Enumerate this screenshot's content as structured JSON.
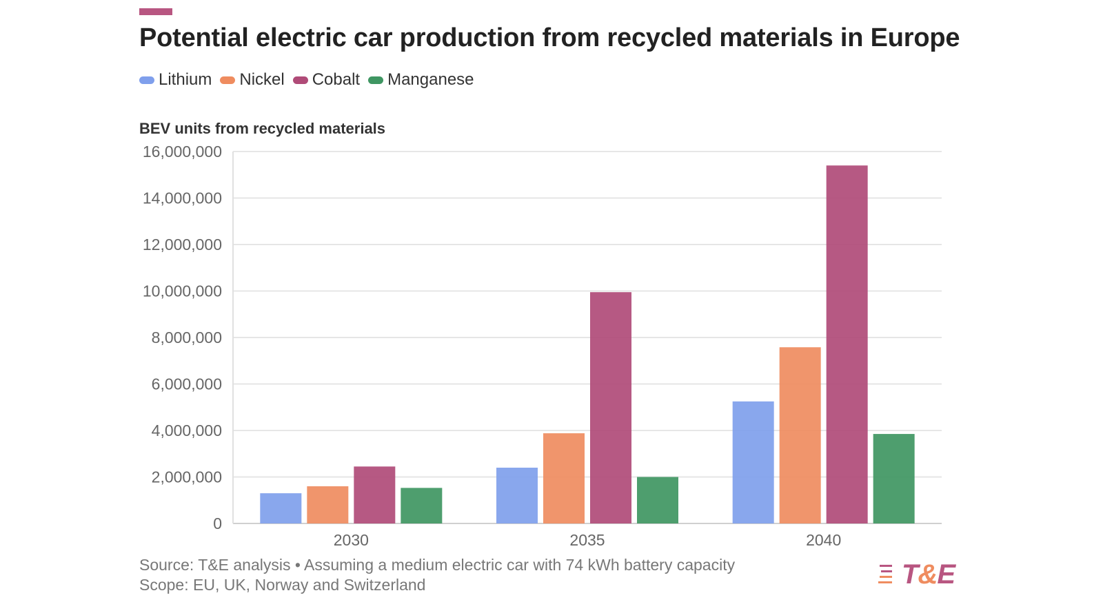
{
  "title": "Potential electric car production from recycled materials in Europe",
  "legend": [
    {
      "label": "Lithium",
      "color": "#7f9fec"
    },
    {
      "label": "Nickel",
      "color": "#ef8c5f"
    },
    {
      "label": "Cobalt",
      "color": "#b04b78"
    },
    {
      "label": "Manganese",
      "color": "#3f9662"
    }
  ],
  "accent_color": "#b85681",
  "footer": {
    "source": "Source: T&E analysis • Assuming a medium electric car with 74 kWh battery capacity",
    "scope": "Scope: EU, UK, Norway and Switzerland"
  },
  "logo": {
    "t": "T",
    "amp": "&",
    "e": "E"
  },
  "chart_data": {
    "type": "bar",
    "title": "Potential electric car production from recycled materials in Europe",
    "ylabel": "BEV units from recycled materials",
    "xlabel": "",
    "categories": [
      "2030",
      "2035",
      "2040"
    ],
    "series": [
      {
        "name": "Lithium",
        "color": "#7f9fec",
        "values": [
          1300000,
          2400000,
          5250000
        ]
      },
      {
        "name": "Nickel",
        "color": "#ef8c5f",
        "values": [
          1600000,
          3880000,
          7580000
        ]
      },
      {
        "name": "Cobalt",
        "color": "#b04b78",
        "values": [
          2450000,
          9950000,
          15400000
        ]
      },
      {
        "name": "Manganese",
        "color": "#3f9662",
        "values": [
          1530000,
          2000000,
          3850000
        ]
      }
    ],
    "ylim": [
      0,
      16000000
    ],
    "yticks": [
      0,
      2000000,
      4000000,
      6000000,
      8000000,
      10000000,
      12000000,
      14000000,
      16000000
    ],
    "ytick_labels": [
      "0",
      "2,000,000",
      "4,000,000",
      "6,000,000",
      "8,000,000",
      "10,000,000",
      "12,000,000",
      "14,000,000",
      "16,000,000"
    ],
    "grid": true,
    "legend_position": "top-left"
  }
}
